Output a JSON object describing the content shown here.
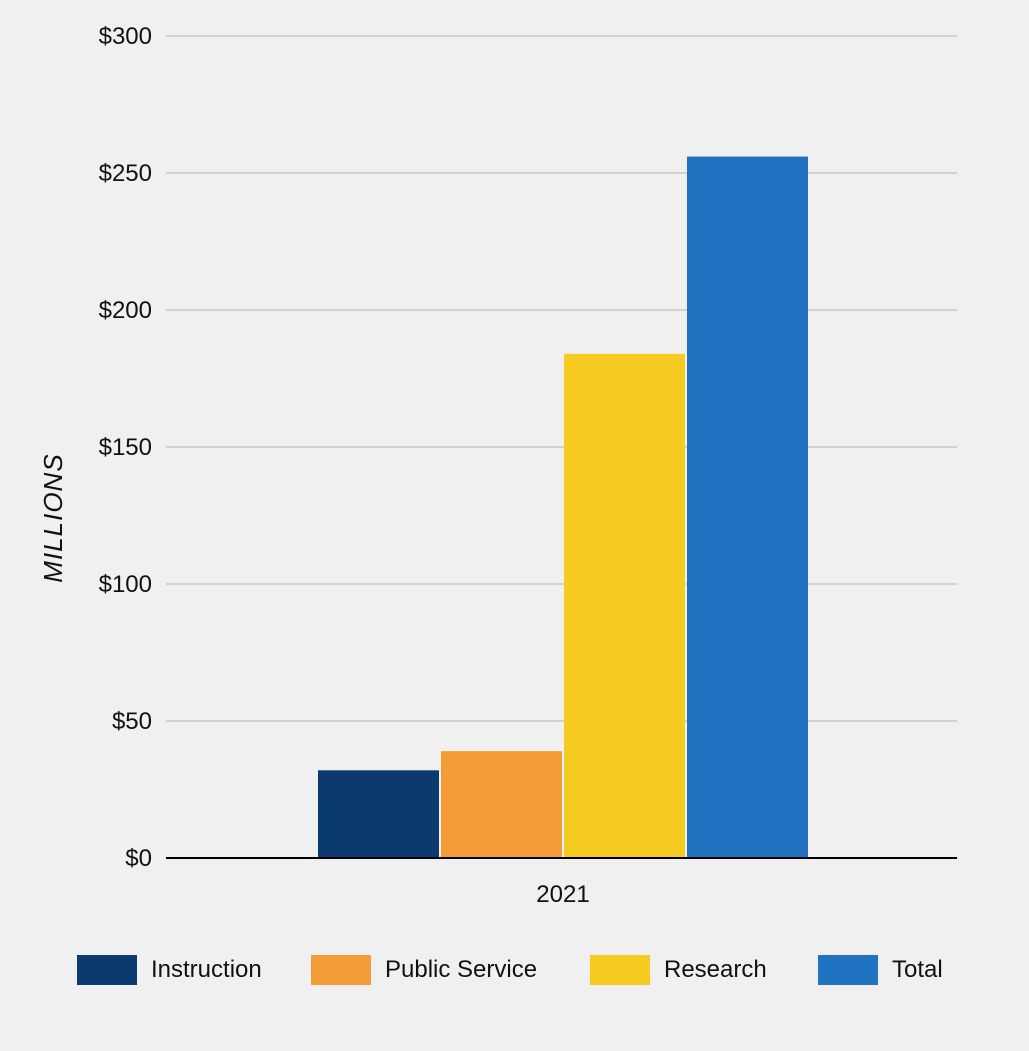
{
  "chart_data": {
    "type": "bar",
    "categories": [
      "2021"
    ],
    "series": [
      {
        "name": "Instruction",
        "values": [
          32
        ],
        "color": "#0a3a6e"
      },
      {
        "name": "Public Service",
        "values": [
          39
        ],
        "color": "#f39c38"
      },
      {
        "name": "Research",
        "values": [
          184
        ],
        "color": "#f5cb22"
      },
      {
        "name": "Total",
        "values": [
          256
        ],
        "color": "#1f73c0"
      }
    ],
    "ylabel": "MILLIONS",
    "xlabel": "",
    "ylim": [
      0,
      300
    ],
    "yticks": [
      0,
      50,
      100,
      150,
      200,
      250,
      300
    ],
    "ytick_labels": [
      "$0",
      "$50",
      "$100",
      "$150",
      "$200",
      "$250",
      "$300"
    ],
    "grid": true,
    "legend_position": "bottom"
  }
}
